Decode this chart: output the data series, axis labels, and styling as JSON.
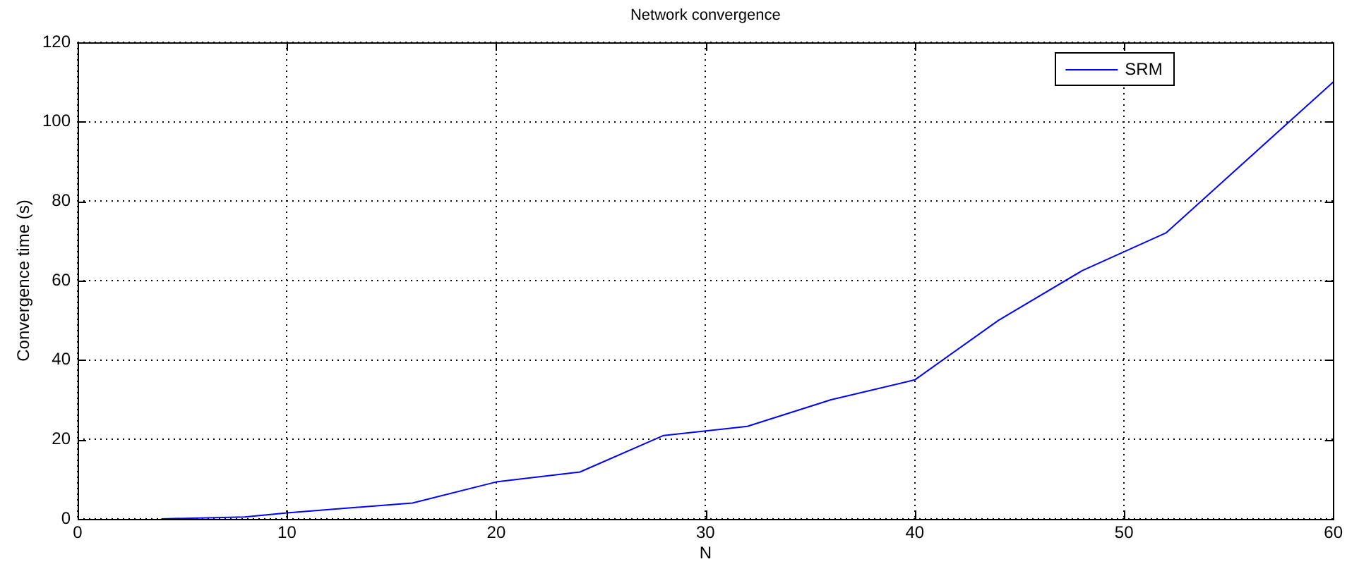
{
  "chart_data": {
    "type": "line",
    "title": "Network convergence",
    "xlabel": "N",
    "ylabel": "Convergence time (s)",
    "x": [
      4,
      8,
      10,
      16,
      20,
      24,
      28,
      32,
      36,
      40,
      44,
      48,
      52,
      60
    ],
    "series": [
      {
        "name": "SRM",
        "color": "#0000ff",
        "values": [
          0,
          0.5,
          1.5,
          4,
          9.3,
          11.8,
          21,
          23.3,
          30,
          35,
          50,
          62.5,
          72,
          110
        ]
      }
    ],
    "xlim": [
      0,
      60
    ],
    "ylim": [
      0,
      120
    ],
    "xticks": [
      0,
      10,
      20,
      30,
      40,
      50,
      60
    ],
    "yticks": [
      0,
      20,
      40,
      60,
      80,
      100,
      120
    ],
    "grid": true,
    "legend": "top right"
  }
}
